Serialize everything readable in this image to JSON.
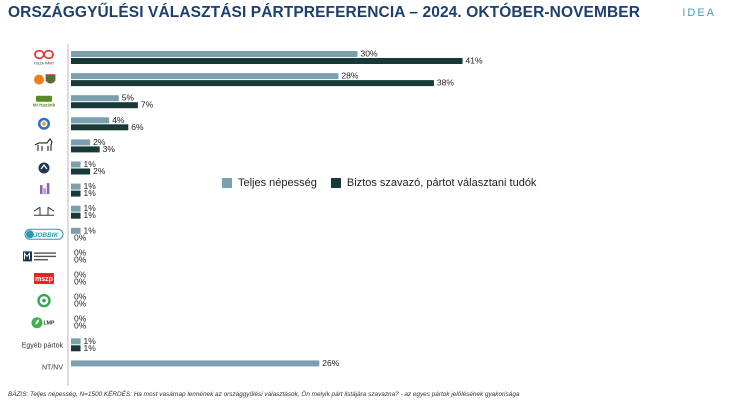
{
  "header": {
    "title": "ORSZÁGGYŰLÉSI VÁLASZTÁSI PÁRTPREFERENCIA – 2024. OKTÓBER-NOVEMBER",
    "brand": "IDEA"
  },
  "footnote": "BÁZIS: Teljes népesség, N=1500  KÉRDÉS:  Ha most vasárnap lennének az országgyűlési választások, Ön melyik párt listájára szavazna? - az egyes pártok jelölésének gyakorisága",
  "colors": {
    "teljes": "#7aa0b0",
    "biztos": "#173a38"
  },
  "logos": [
    {
      "name": "tisza-logo",
      "icon": "infinity",
      "caption": "TISZA PÁRT",
      "color": "#e53935"
    },
    {
      "name": "fidesz-kdnp-logo",
      "icon": "badges",
      "caption": "",
      "color": "#f07c1c"
    },
    {
      "name": "mi-hazank-logo",
      "icon": "text-badge",
      "caption": "Mi Hazánk",
      "color": "#5a8a22"
    },
    {
      "name": "dk-logo",
      "icon": "circle-badge",
      "caption": "",
      "color": "#2e6fc4"
    },
    {
      "name": "mkkp-logo",
      "icon": "dog",
      "caption": "",
      "color": "#222222"
    },
    {
      "name": "momentum-like-logo",
      "icon": "dark-badge",
      "caption": "",
      "color": "#1f3550"
    },
    {
      "name": "purple-bars-logo",
      "icon": "bars",
      "caption": "",
      "color": "#8e63b6"
    },
    {
      "name": "bridge-logo",
      "icon": "bridge",
      "caption": "",
      "color": "#333333"
    },
    {
      "name": "jobbik-logo",
      "icon": "pill",
      "caption": "JOBBIK",
      "color": "#2a9bb0"
    },
    {
      "name": "mmn-logo",
      "icon": "m-square",
      "caption": "",
      "color": "#1f3550"
    },
    {
      "name": "mszp-logo",
      "icon": "red-box",
      "caption": "mszp",
      "color": "#e32626"
    },
    {
      "name": "green-round-logo",
      "icon": "green-ring",
      "caption": "",
      "color": "#36a64f"
    },
    {
      "name": "lmp-logo",
      "icon": "green-leaf",
      "caption": "LMP",
      "color": "#3cb44b"
    },
    {
      "name": "egyeb-label",
      "icon": "text",
      "caption": "Egyéb pártok",
      "color": "#333333"
    },
    {
      "name": "ntnv-label",
      "icon": "text",
      "caption": "NT/NV",
      "color": "#333333"
    }
  ],
  "chart_data": {
    "type": "bar",
    "orientation": "horizontal",
    "categories": [
      "TISZA PÁRT",
      "",
      "Mi Hazánk",
      "",
      "",
      "",
      "",
      "",
      "JOBBIK",
      "",
      "mszp",
      "",
      "LMP",
      "Egyéb pártok",
      "NT/NV"
    ],
    "series": [
      {
        "name": "Teljes népesség",
        "values": [
          30,
          28,
          5,
          4,
          2,
          1,
          1,
          1,
          1,
          0,
          0,
          0,
          0,
          1,
          26
        ]
      },
      {
        "name": "Biztos szavazó, pártot választani tudók",
        "values": [
          41,
          38,
          7,
          6,
          3,
          2,
          1,
          1,
          0,
          0,
          0,
          0,
          0,
          1,
          null
        ]
      }
    ],
    "value_suffix": "%",
    "title": "ORSZÁGGYŰLÉSI VÁLASZTÁSI PÁRTPREFERENCIA – 2024. OKTÓBER-NOVEMBER",
    "xlabel": "",
    "ylabel": "",
    "grid": false,
    "legend": "center-right"
  }
}
